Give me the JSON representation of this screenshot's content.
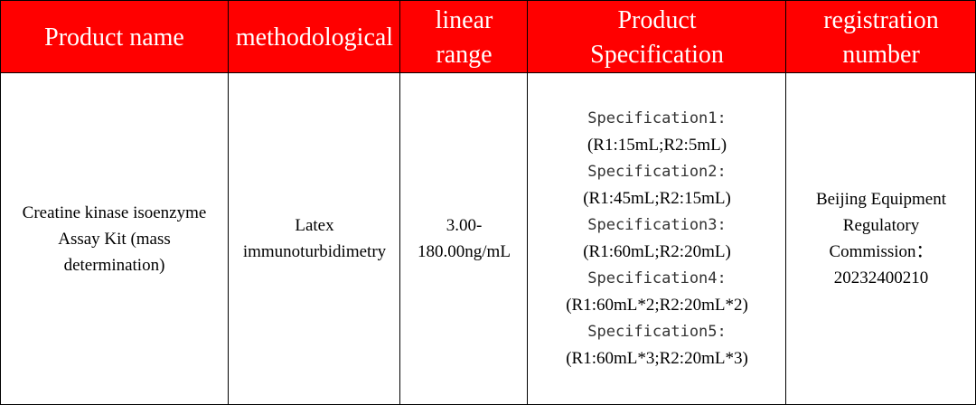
{
  "header": {
    "product_name": "Product name",
    "methodological": "methodological",
    "linear_range": "linear\nrange",
    "product_specification": "Product\nSpecification",
    "registration_number": "registration\nnumber"
  },
  "row": {
    "product_name": "Creatine kinase isoenzyme\nAssay Kit (mass\ndetermination)",
    "methodological": "Latex\nimmunoturbidimetry",
    "linear_range": "3.00-\n180.00ng/mL",
    "specifications": [
      {
        "label": "Specification1:",
        "value": "(R1:15mL;R2:5mL)"
      },
      {
        "label": "Specification2:",
        "value": "(R1:45mL;R2:15mL)"
      },
      {
        "label": "Specification3:",
        "value": "(R1:60mL;R2:20mL)"
      },
      {
        "label": "Specification4:",
        "value": "(R1:60mL*2;R2:20mL*2)"
      },
      {
        "label": "Specification5:",
        "value": "(R1:60mL*3;R2:20mL*3)"
      }
    ],
    "registration_number": "Beijing Equipment\nRegulatory\nCommission：\n20232400210"
  },
  "colors": {
    "header_bg": "#ff0000",
    "header_text": "#ffffff",
    "grid": "#000000"
  }
}
